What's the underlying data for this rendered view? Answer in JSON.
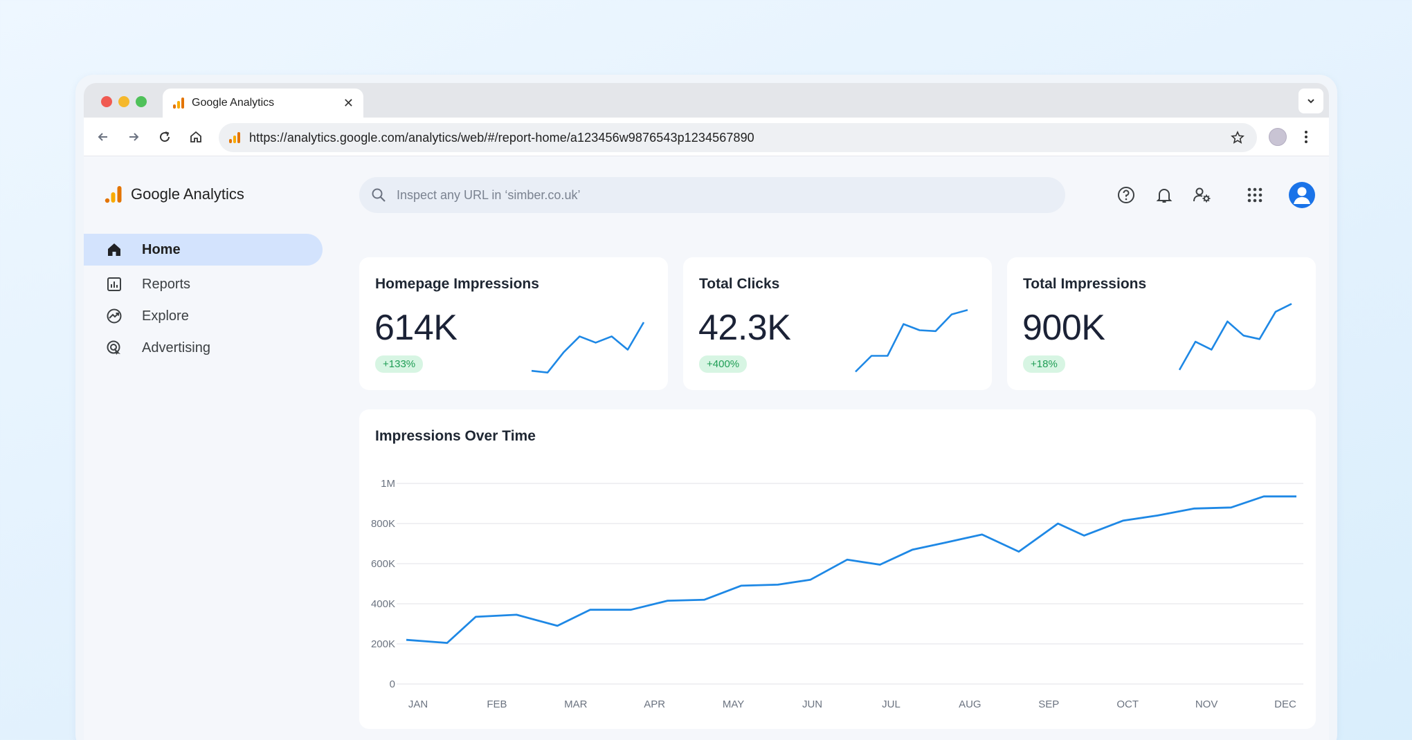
{
  "browser": {
    "tab_title": "Google Analytics",
    "url": "https://analytics.google.com/analytics/web/#/report-home/a123456w9876543p1234567890"
  },
  "app": {
    "brand": "Google Analytics",
    "search_placeholder": "Inspect any URL in ‘simber.co.uk’",
    "nav": [
      {
        "label": "Home",
        "icon": "home-icon",
        "active": true
      },
      {
        "label": "Reports",
        "icon": "reports-icon",
        "active": false
      },
      {
        "label": "Explore",
        "icon": "explore-icon",
        "active": false
      },
      {
        "label": "Advertising",
        "icon": "advertising-icon",
        "active": false
      }
    ],
    "top_icons": [
      "help-icon",
      "bell-icon",
      "manage-users-icon",
      "apps-grid-icon",
      "account-avatar-icon"
    ]
  },
  "kpis": [
    {
      "title": "Homepage Impressions",
      "value": "614K",
      "delta": "+133%",
      "spark": [
        3,
        1,
        24,
        42,
        35,
        42,
        27,
        58
      ]
    },
    {
      "title": "Total Clicks",
      "value": "42.3K",
      "delta": "+400%",
      "spark": [
        2,
        20,
        20,
        56,
        49,
        48,
        67,
        72
      ]
    },
    {
      "title": "Total Impressions",
      "value": "900K",
      "delta": "+18%",
      "spark": [
        4,
        36,
        27,
        59,
        43,
        39,
        70,
        79
      ]
    }
  ],
  "chart_data": {
    "type": "line",
    "title": "Impressions Over Time",
    "xlabel": "",
    "ylabel": "",
    "ylim": [
      0,
      1000000
    ],
    "y_ticks": [
      "0",
      "200K",
      "400K",
      "600K",
      "800K",
      "1M"
    ],
    "x_ticks": [
      "JAN",
      "FEB",
      "MAR",
      "APR",
      "MAY",
      "JUN",
      "JUL",
      "AUG",
      "SEP",
      "OCT",
      "NOV",
      "DEC"
    ],
    "grid": true,
    "color": "#1e88e5",
    "x": [
      0,
      0.5,
      0.85,
      1.35,
      1.85,
      2.25,
      2.75,
      3.2,
      3.65,
      4.1,
      4.55,
      4.95,
      5.4,
      5.8,
      6.2,
      6.6,
      7.05,
      7.5,
      7.98,
      8.3,
      8.78,
      9.2,
      9.65,
      10.1,
      10.5,
      10.9
    ],
    "values": [
      220000,
      205000,
      335000,
      345000,
      290000,
      370000,
      370000,
      415000,
      420000,
      490000,
      495000,
      520000,
      620000,
      595000,
      670000,
      705000,
      745000,
      660000,
      800000,
      740000,
      815000,
      840000,
      875000,
      880000,
      935000,
      935000
    ]
  },
  "colors": {
    "accent": "#1a73e8",
    "line": "#1e88e5",
    "badge_bg": "#d7f5e3",
    "badge_text": "#1f9d55",
    "nav_active": "#d3e3fd"
  }
}
